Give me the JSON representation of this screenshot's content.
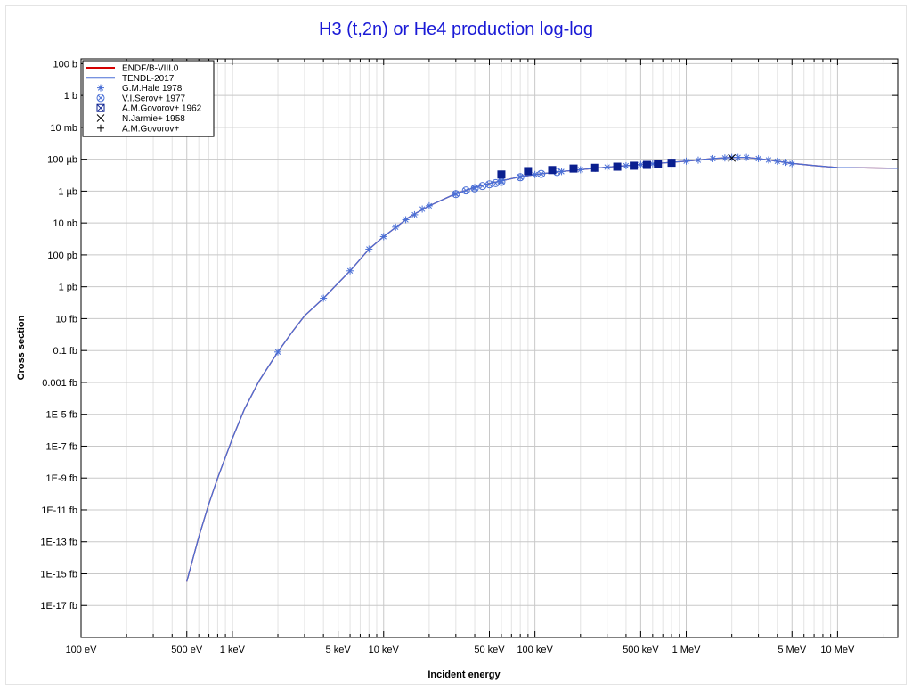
{
  "chart_data": {
    "type": "line",
    "title": "H3 (t,2n) or He4 production log-log",
    "xlabel": "Incident energy",
    "ylabel": "Cross section",
    "x_scale": "log",
    "y_scale": "log",
    "x_unit": "eV",
    "y_unit": "barn",
    "xlim": [
      100,
      25000000
    ],
    "ylim": [
      1e-34,
      200
    ],
    "grid": true,
    "legend_position": "top-left",
    "x_ticks": [
      {
        "value": 100,
        "label": "100 eV"
      },
      {
        "value": 500,
        "label": "500 eV"
      },
      {
        "value": 1000,
        "label": "1 keV"
      },
      {
        "value": 5000,
        "label": "5 keV"
      },
      {
        "value": 10000,
        "label": "10 keV"
      },
      {
        "value": 50000,
        "label": "50 keV"
      },
      {
        "value": 100000,
        "label": "100 keV"
      },
      {
        "value": 500000,
        "label": "500 keV"
      },
      {
        "value": 1000000,
        "label": "1 MeV"
      },
      {
        "value": 5000000,
        "label": "5 MeV"
      },
      {
        "value": 10000000,
        "label": "10 MeV"
      }
    ],
    "y_ticks": [
      {
        "value": 100,
        "label": "100 b"
      },
      {
        "value": 1,
        "label": "1 b"
      },
      {
        "value": 0.01,
        "label": "10 mb"
      },
      {
        "value": 0.0001,
        "label": "100 µb"
      },
      {
        "value": 1e-06,
        "label": "1 µb"
      },
      {
        "value": 1e-08,
        "label": "10 nb"
      },
      {
        "value": 1e-10,
        "label": "100 pb"
      },
      {
        "value": 1e-12,
        "label": "1 pb"
      },
      {
        "value": 1e-14,
        "label": "10 fb"
      },
      {
        "value": 1e-16,
        "label": "0.1 fb"
      },
      {
        "value": 1e-18,
        "label": "0.001 fb"
      },
      {
        "value": 1e-20,
        "label": "1E-5 fb"
      },
      {
        "value": 1e-22,
        "label": "1E-7 fb"
      },
      {
        "value": 1e-24,
        "label": "1E-9 fb"
      },
      {
        "value": 1e-26,
        "label": "1E-11 fb"
      },
      {
        "value": 1e-28,
        "label": "1E-13 fb"
      },
      {
        "value": 1e-30,
        "label": "1E-15 fb"
      },
      {
        "value": 1e-32,
        "label": "1E-17 fb"
      }
    ],
    "series": [
      {
        "name": "ENDF/B-VIII.0",
        "kind": "line",
        "color": "#d40000",
        "x": [
          500,
          600,
          700,
          800,
          1000,
          1200,
          1500,
          2000,
          2500,
          3000,
          4000,
          5000,
          6000,
          8000,
          10000,
          15000,
          20000,
          30000,
          40000,
          50000,
          60000,
          80000,
          100000,
          150000,
          200000,
          300000,
          500000,
          700000,
          1000000,
          1500000,
          2000000,
          2500000,
          3000000,
          4000000,
          5000000,
          7000000,
          10000000,
          25000000
        ],
        "y": [
          3.2e-31,
          2e-28,
          2.5e-26,
          1e-24,
          3e-22,
          2e-20,
          1.2e-18,
          8.1e-17,
          1.6e-15,
          1.5e-14,
          1.9e-13,
          1.7e-12,
          1e-11,
          2.3e-10,
          1.4e-09,
          2.6e-08,
          1.2e-07,
          7e-07,
          1.7e-06,
          3e-06,
          4.5e-06,
          8e-06,
          1.1e-05,
          1.7e-05,
          2.2e-05,
          3.2e-05,
          4.6e-05,
          5.8e-05,
          7.6e-05,
          0.00011,
          0.00013,
          0.00013,
          0.00011,
          7.5e-05,
          5.5e-05,
          4e-05,
          3e-05,
          2.7e-05
        ]
      },
      {
        "name": "TENDL-2017",
        "kind": "line",
        "color": "#4a6fd6",
        "x": [
          500,
          600,
          700,
          800,
          1000,
          1200,
          1500,
          2000,
          2500,
          3000,
          4000,
          5000,
          6000,
          8000,
          10000,
          15000,
          20000,
          30000,
          40000,
          50000,
          60000,
          80000,
          100000,
          150000,
          200000,
          300000,
          500000,
          700000,
          1000000,
          1500000,
          2000000,
          2500000,
          3000000,
          4000000,
          5000000,
          7000000,
          10000000,
          25000000
        ],
        "y": [
          3.2e-31,
          2e-28,
          2.5e-26,
          1e-24,
          3e-22,
          2e-20,
          1.2e-18,
          8.1e-17,
          1.6e-15,
          1.5e-14,
          1.9e-13,
          1.7e-12,
          1e-11,
          2.3e-10,
          1.4e-09,
          2.6e-08,
          1.2e-07,
          7e-07,
          1.7e-06,
          3e-06,
          4.5e-06,
          8e-06,
          1.1e-05,
          1.7e-05,
          2.2e-05,
          3.2e-05,
          4.6e-05,
          5.8e-05,
          7.6e-05,
          0.00011,
          0.00013,
          0.00013,
          0.00011,
          7.5e-05,
          5.5e-05,
          4e-05,
          3e-05,
          2.7e-05
        ]
      },
      {
        "name": "G.M.Hale 1978",
        "kind": "markers",
        "marker": "asterisk",
        "color": "#4a6fd6",
        "x": [
          2000,
          4000,
          6000,
          8000,
          10000,
          12000,
          14000,
          16000,
          18000,
          20000,
          30000,
          40000,
          60000,
          80000,
          100000,
          150000,
          200000,
          250000,
          300000,
          400000,
          500000,
          600000,
          800000,
          1000000,
          1200000,
          1500000,
          1800000,
          2000000,
          2200000,
          2500000,
          3000000,
          3500000,
          4000000,
          4500000,
          5000000
        ],
        "y": [
          8.1e-17,
          1.9e-13,
          1e-11,
          2.3e-10,
          1.4e-09,
          5.5e-09,
          1.6e-08,
          3.3e-08,
          7.5e-08,
          1.2e-07,
          7e-07,
          1.7e-06,
          4.5e-06,
          8e-06,
          1.1e-05,
          1.7e-05,
          2.2e-05,
          2.7e-05,
          3.2e-05,
          3.9e-05,
          4.6e-05,
          5.1e-05,
          6.5e-05,
          7.6e-05,
          8.8e-05,
          0.00011,
          0.00012,
          0.00013,
          0.00013,
          0.00013,
          0.00011,
          9e-05,
          7.5e-05,
          6.4e-05,
          5.3e-05
        ]
      },
      {
        "name": "V.I.Serov+ 1977",
        "kind": "markers",
        "marker": "circle-x",
        "color": "#4a6fd6",
        "x": [
          30000,
          35000,
          40000,
          45000,
          50000,
          55000,
          60000,
          80000,
          110000,
          140000
        ],
        "y": [
          6.5e-07,
          1.1e-06,
          1.5e-06,
          2.1e-06,
          2.7e-06,
          3.2e-06,
          3.8e-06,
          7.5e-06,
          1.2e-05,
          1.6e-05
        ]
      },
      {
        "name": "A.M.Govorov+ 1962",
        "kind": "markers",
        "marker": "square-x",
        "color": "#0a1f8f",
        "x": [
          60000,
          90000,
          130000,
          180000,
          250000,
          350000,
          450000,
          550000,
          650000,
          800000
        ],
        "y": [
          1.1e-05,
          1.8e-05,
          2.1e-05,
          2.6e-05,
          2.9e-05,
          3.4e-05,
          3.9e-05,
          4.4e-05,
          5e-05,
          6e-05
        ]
      },
      {
        "name": "N.Jarmie+ 1958",
        "kind": "markers",
        "marker": "x",
        "color": "#000000",
        "x": [
          2000000
        ],
        "y": [
          0.00012
        ]
      },
      {
        "name": "A.M.Govorov+",
        "kind": "markers",
        "marker": "plus",
        "color": "#000000",
        "x": [],
        "y": []
      }
    ]
  }
}
